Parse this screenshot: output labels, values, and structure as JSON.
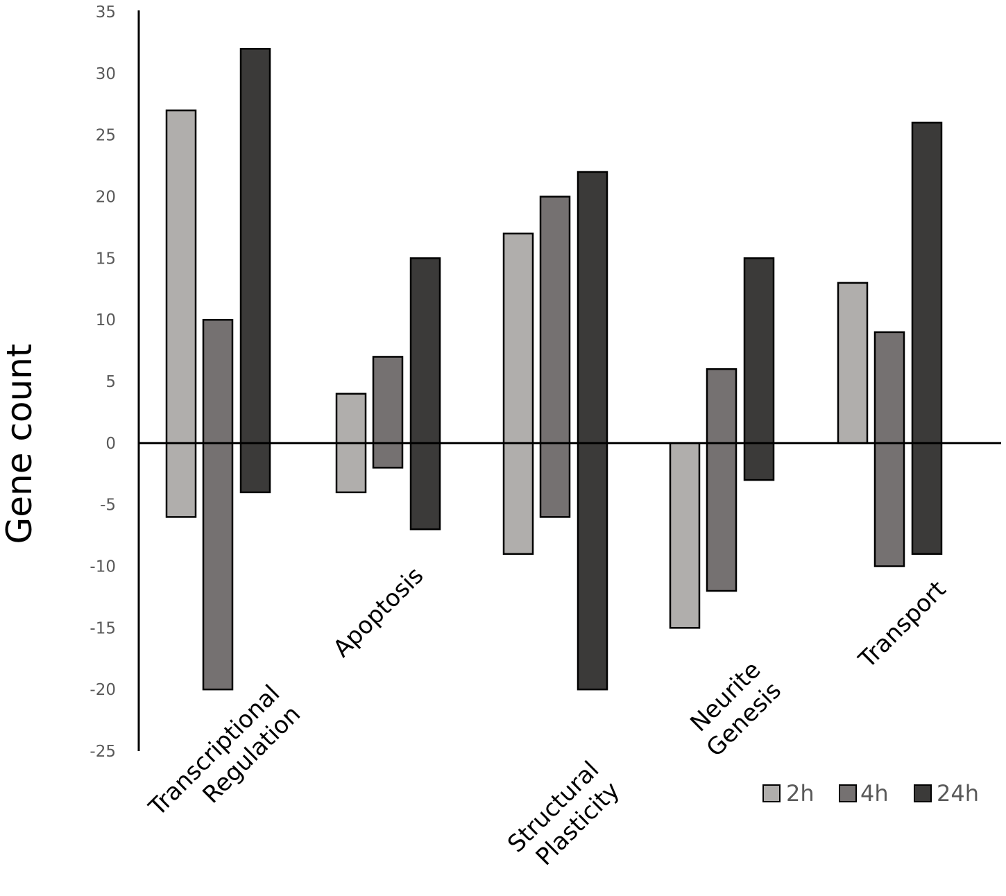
{
  "chart_data": {
    "type": "bar",
    "title": "",
    "ylabel": "Gene count",
    "xlabel": "",
    "ylim": [
      -25,
      35
    ],
    "yticks": [
      35,
      30,
      25,
      20,
      15,
      10,
      5,
      0,
      -5,
      -10,
      -15,
      -20,
      -25
    ],
    "categories": [
      [
        "Transcriptional",
        "Regulation"
      ],
      [
        "Apoptosis"
      ],
      [
        "Structural",
        "Plasticity"
      ],
      [
        "Neurite",
        "Genesis"
      ],
      [
        "Transport"
      ]
    ],
    "legend_position": "bottom-right",
    "series": [
      {
        "name": "2h",
        "color": "#b0aeac",
        "up": [
          27,
          4,
          17,
          0,
          13
        ],
        "down": [
          -6,
          -4,
          -9,
          -15,
          0
        ]
      },
      {
        "name": "4h",
        "color": "#757171",
        "up": [
          10,
          7,
          20,
          6,
          9
        ],
        "down": [
          -20,
          -2,
          -6,
          -12,
          -10
        ]
      },
      {
        "name": "24h",
        "color": "#3b3a39",
        "up": [
          32,
          15,
          22,
          15,
          26
        ],
        "down": [
          -4,
          -7,
          -20,
          -3,
          -9
        ]
      }
    ]
  }
}
